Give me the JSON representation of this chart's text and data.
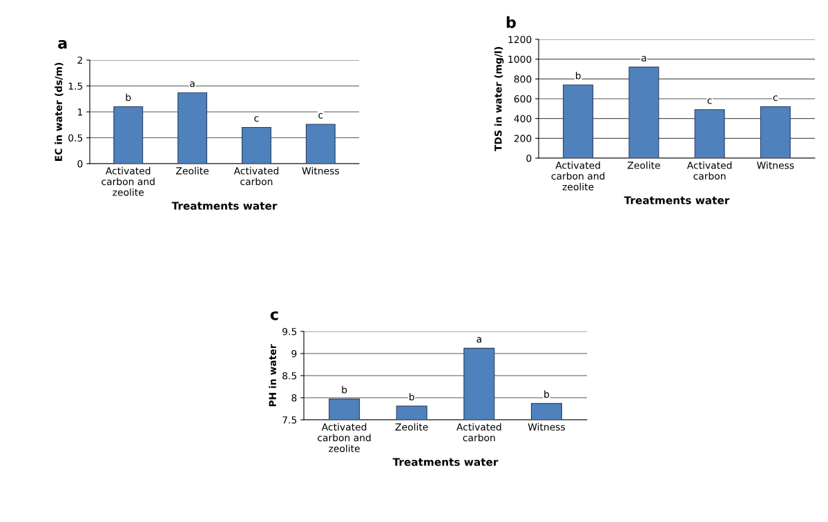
{
  "chart_data": [
    {
      "type": "bar",
      "title": "a",
      "xlabel": "Treatments water",
      "ylabel": "EC in water (ds/m)",
      "categories": [
        "Activated\ncarbon and\nzeolite",
        "Zeolite",
        "Activated\ncarbon",
        "Witness"
      ],
      "values": [
        1.1,
        1.37,
        0.7,
        0.76
      ],
      "color": "#4f81bd",
      "ylim": [
        0,
        2
      ],
      "yticks": [
        0,
        0.5,
        1,
        1.5,
        2
      ],
      "grid": "y",
      "annotations": [
        {
          "text": "b",
          "x": "Activated\ncarbon and\nzeolite",
          "y": 1.1
        },
        {
          "text": "a",
          "x": "Zeolite",
          "y": 1.37
        },
        {
          "text": "c",
          "x": "Activated\ncarbon",
          "y": 0.7
        },
        {
          "text": "c",
          "x": "Witness",
          "y": 0.76
        }
      ]
    },
    {
      "type": "bar",
      "title": "b",
      "xlabel": "Treatments water",
      "ylabel": "TDS in water (mg/l)",
      "categories": [
        "Activated\ncarbon and\nzeolite",
        "Zeolite",
        "Activated\ncarbon",
        "Witness"
      ],
      "values": [
        740,
        920,
        490,
        520
      ],
      "color": "#4f81bd",
      "ylim": [
        0,
        1200
      ],
      "yticks": [
        0,
        200,
        400,
        600,
        800,
        1000,
        1200
      ],
      "grid": "y",
      "annotations": [
        {
          "text": "b",
          "x": "Activated\ncarbon and\nzeolite",
          "y": 740
        },
        {
          "text": "a",
          "x": "Zeolite",
          "y": 920
        },
        {
          "text": "c",
          "x": "Activated\ncarbon",
          "y": 490
        },
        {
          "text": "c",
          "x": "Witness",
          "y": 520
        }
      ]
    },
    {
      "type": "bar",
      "title": "c",
      "xlabel": "Treatments water",
      "ylabel": "PH in water",
      "categories": [
        "Activated\ncarbon and\nzeolite",
        "Zeolite",
        "Activated\ncarbon",
        "Witness"
      ],
      "values": [
        7.97,
        7.81,
        9.12,
        7.87
      ],
      "color": "#4f81bd",
      "ylim": [
        7.5,
        9.5
      ],
      "yticks": [
        7.5,
        8,
        8.5,
        9,
        9.5
      ],
      "grid": "y",
      "annotations": [
        {
          "text": "b",
          "x": "Activated\ncarbon and\nzeolite",
          "y": 7.97
        },
        {
          "text": "b",
          "x": "Zeolite",
          "y": 7.81
        },
        {
          "text": "a",
          "x": "Activated\ncarbon",
          "y": 9.12
        },
        {
          "text": "b",
          "x": "Witness",
          "y": 7.87
        }
      ]
    }
  ]
}
